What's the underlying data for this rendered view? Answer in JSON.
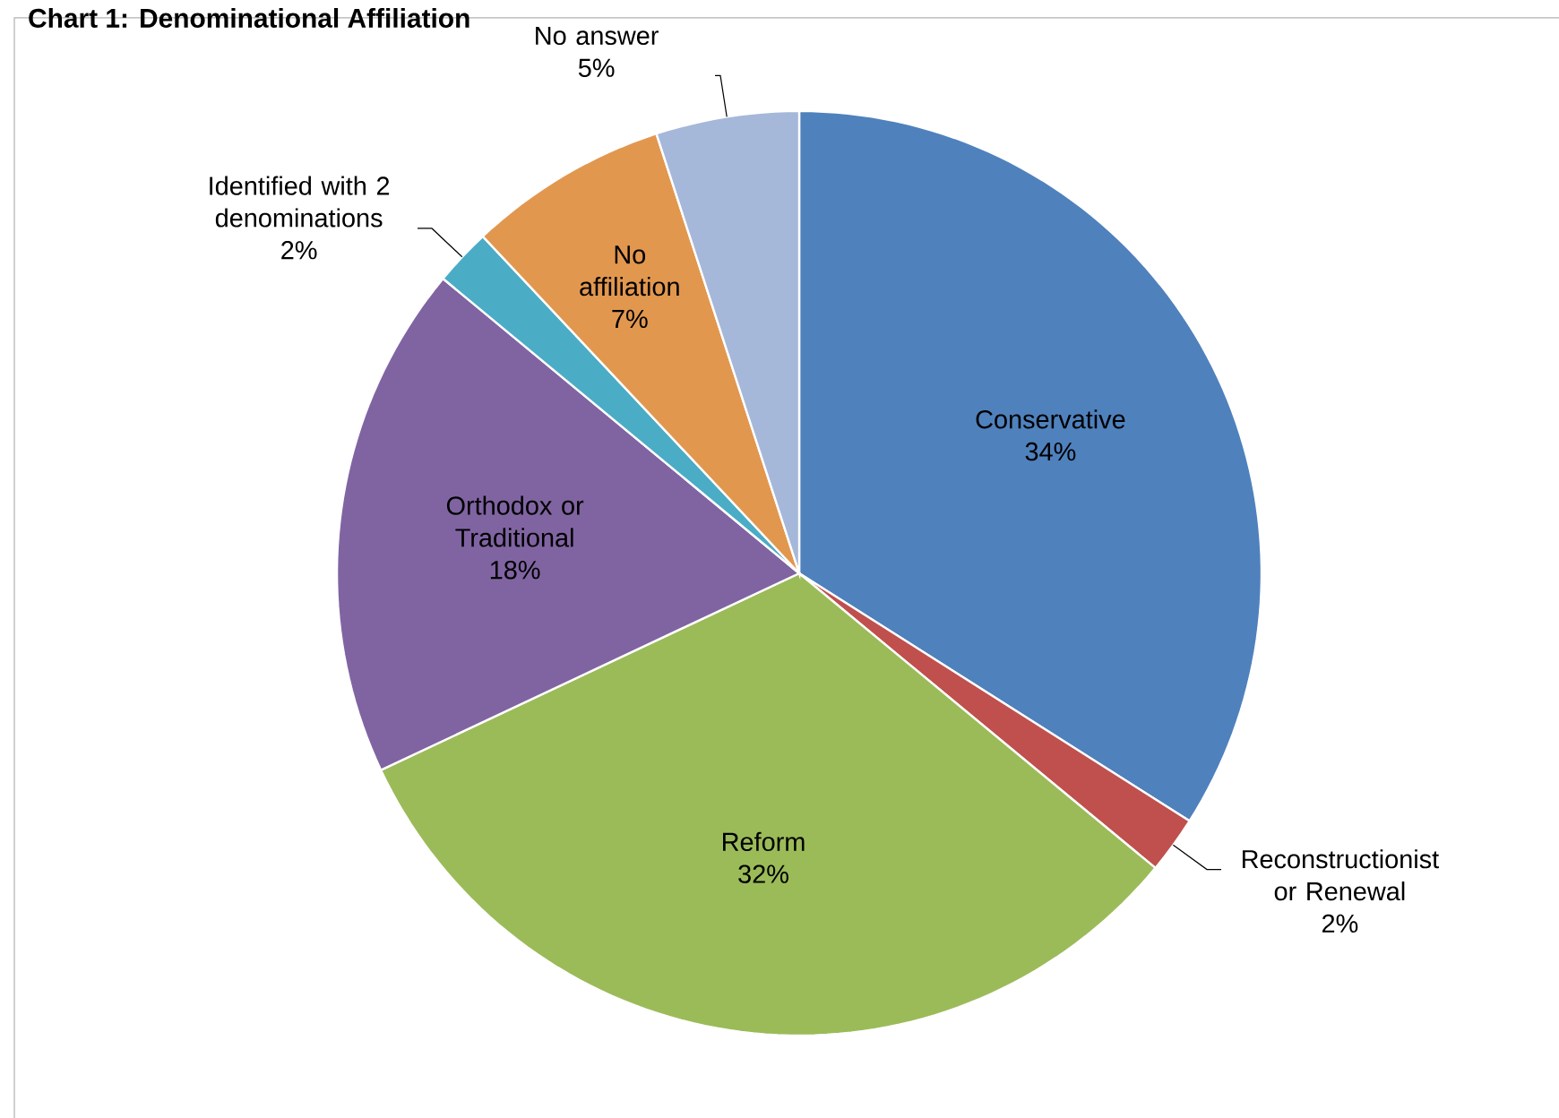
{
  "chart_data": {
    "type": "pie",
    "title": "Chart 1: Denominational Affiliation",
    "categories": [
      "Conservative",
      "Reconstructionist or Renewal",
      "Reform",
      "Orthodox or Traditional",
      "Identified with 2 denominations",
      "No affiliation",
      "No answer"
    ],
    "values": [
      34,
      2,
      32,
      18,
      2,
      7,
      5
    ],
    "value_labels": [
      "34%",
      "2%",
      "32%",
      "18%",
      "2%",
      "7%",
      "5%"
    ],
    "colors": [
      "#4f81bd",
      "#c0504d",
      "#9bbb59",
      "#8064a2",
      "#4bacc6",
      "#e2974f",
      "#a5b8d9"
    ]
  }
}
